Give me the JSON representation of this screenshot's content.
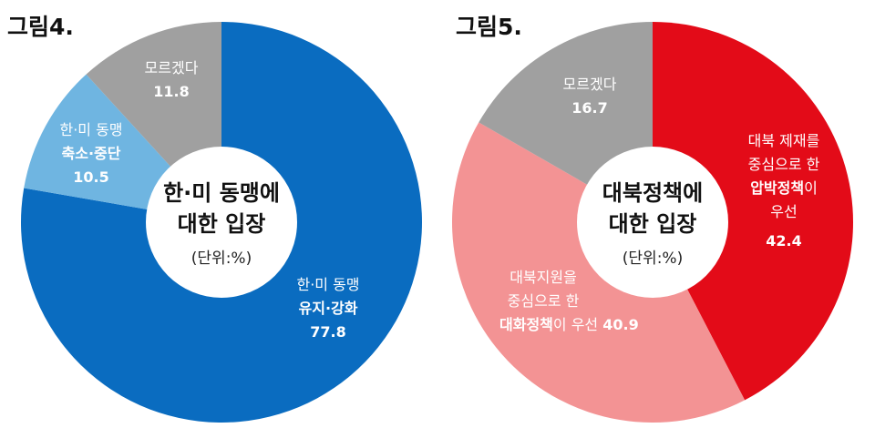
{
  "chart_data": [
    {
      "type": "pie",
      "figure_label": "그림4.",
      "title_lines": [
        "한·미 동맹에",
        "대한 입장"
      ],
      "unit": "(단위:%)",
      "colors": [
        "#0a6cc0",
        "#6fb5e1",
        "#a0a0a0"
      ],
      "slices": [
        {
          "value": 77.8,
          "label_lines": [
            [
              "한·미 동맹"
            ],
            [
              "유지·강화"
            ]
          ],
          "value_text": "77.8"
        },
        {
          "value": 10.5,
          "label_lines": [
            [
              "한·미 동맹"
            ],
            [
              "축소·중단"
            ]
          ],
          "value_text": "10.5"
        },
        {
          "value": 11.8,
          "label_lines": [
            [
              "모르겠다"
            ]
          ],
          "value_text": "11.8"
        }
      ]
    },
    {
      "type": "pie",
      "figure_label": "그림5.",
      "title_lines": [
        "대북정책에",
        "대한 입장"
      ],
      "unit": "(단위:%)",
      "colors": [
        "#e30b18",
        "#f39394",
        "#a0a0a0"
      ],
      "slices": [
        {
          "value": 42.4,
          "label_lines": [
            [
              "대북 제재를"
            ],
            [
              "중심으로 한"
            ],
            [
              "압박정책",
              "이"
            ],
            [
              "우선"
            ]
          ],
          "value_text": "42.4"
        },
        {
          "value": 40.9,
          "label_lines": [
            [
              "대북지원을"
            ],
            [
              "중심으로 한"
            ],
            [
              "대화정책",
              "이 우선 ",
              "40.9"
            ]
          ],
          "value_text": ""
        },
        {
          "value": 16.7,
          "label_lines": [
            [
              "모르겠다"
            ]
          ],
          "value_text": "16.7"
        }
      ]
    }
  ]
}
